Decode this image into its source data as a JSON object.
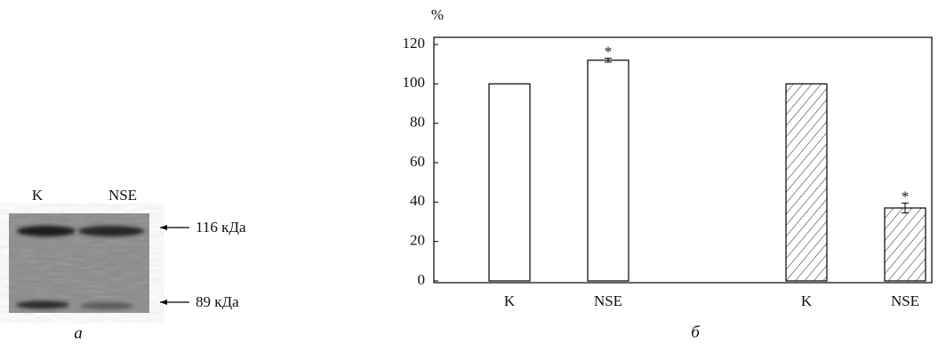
{
  "panel_a": {
    "lanes": [
      "K",
      "NSE"
    ],
    "markers": [
      "116 кДа",
      "89 кДа"
    ],
    "label": "а"
  },
  "chart_data": {
    "type": "bar",
    "y_label": "%",
    "panel_label": "б",
    "categories": [
      "K",
      "NSE",
      "K",
      "NSE"
    ],
    "values": [
      100,
      112,
      100,
      37
    ],
    "errors": [
      null,
      1,
      null,
      2.5
    ],
    "annotations": [
      null,
      "*",
      null,
      "*"
    ],
    "fills": [
      "plain",
      "plain",
      "hatched",
      "hatched"
    ],
    "color": "#000000",
    "ylim": [
      0,
      120
    ],
    "yticks": [
      0,
      20,
      40,
      60,
      80,
      100,
      120
    ],
    "grid": false
  }
}
